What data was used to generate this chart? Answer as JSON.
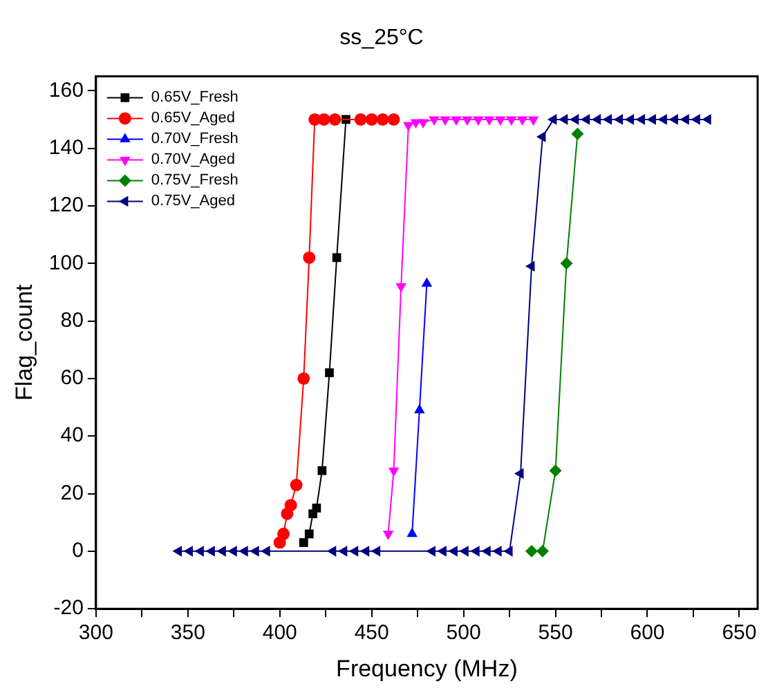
{
  "chart_data": {
    "type": "line",
    "title": "ss_25°C",
    "xlabel": "Frequency (MHz)",
    "ylabel": "Flag_count",
    "xlim": [
      300,
      660
    ],
    "ylim": [
      -20,
      165
    ],
    "xticks": [
      300,
      {
        "value": 325,
        "label": null
      },
      350,
      {
        "value": 375,
        "label": null
      },
      400,
      {
        "value": 425,
        "label": null
      },
      450,
      {
        "value": 475,
        "label": null
      },
      500,
      {
        "value": 525,
        "label": null
      },
      550,
      {
        "value": 575,
        "label": null
      },
      600,
      {
        "value": 625,
        "label": null
      },
      650
    ],
    "yticks": [
      -20,
      0,
      20,
      40,
      60,
      80,
      100,
      120,
      140,
      160
    ],
    "grid": false,
    "legend": "top left",
    "line_style": "solid",
    "series": [
      {
        "name": "0.65V_Fresh",
        "color": "#000000",
        "marker": "square",
        "x": [
          413,
          416,
          418,
          420,
          423,
          427,
          431,
          436
        ],
        "values": [
          3,
          6,
          13,
          15,
          28,
          62,
          102,
          150
        ]
      },
      {
        "name": "0.65V_Aged",
        "color": "#ff0000",
        "marker": "circle",
        "x": [
          400,
          402,
          404,
          406,
          409,
          413,
          416,
          419,
          424,
          430,
          444,
          450,
          456,
          462
        ],
        "values": [
          3,
          6,
          13,
          16,
          23,
          60,
          102,
          150,
          150,
          150,
          150,
          150,
          150,
          150
        ]
      },
      {
        "name": "0.70V_Fresh",
        "color": "#0000ff",
        "marker": "triangle",
        "x": [
          472,
          476,
          480
        ],
        "values": [
          6,
          49,
          93
        ]
      },
      {
        "name": "0.70V_Aged",
        "color": "#ff00ff",
        "marker": "triangle_down",
        "x": [
          459,
          462,
          466,
          470,
          474,
          478,
          484,
          490,
          496,
          502,
          508,
          514,
          520,
          526,
          532,
          538
        ],
        "values": [
          6,
          28,
          92,
          148,
          149,
          149,
          150,
          150,
          150,
          150,
          150,
          150,
          150,
          150,
          150,
          150
        ]
      },
      {
        "name": "0.75V_Fresh",
        "color": "#008000",
        "marker": "diamond",
        "x": [
          537,
          543,
          550,
          556,
          562
        ],
        "values": [
          0,
          0,
          28,
          100,
          145
        ]
      },
      {
        "name": "0.75V_Aged",
        "color": "#000080",
        "marker": "triangle_left",
        "x": [
          345,
          351,
          357,
          363,
          369,
          375,
          381,
          387,
          393,
          429,
          435,
          441,
          447,
          453,
          483,
          489,
          495,
          501,
          507,
          513,
          519,
          525,
          531,
          537,
          543,
          549,
          555,
          561,
          567,
          573,
          579,
          585,
          591,
          597,
          603,
          609,
          615,
          621,
          627,
          633
        ],
        "values": [
          0,
          0,
          0,
          0,
          0,
          0,
          0,
          0,
          0,
          0,
          0,
          0,
          0,
          0,
          0,
          0,
          0,
          0,
          0,
          0,
          0,
          0,
          27,
          99,
          144,
          150,
          150,
          150,
          150,
          150,
          150,
          150,
          150,
          150,
          150,
          150,
          150,
          150,
          150,
          150
        ]
      }
    ]
  }
}
